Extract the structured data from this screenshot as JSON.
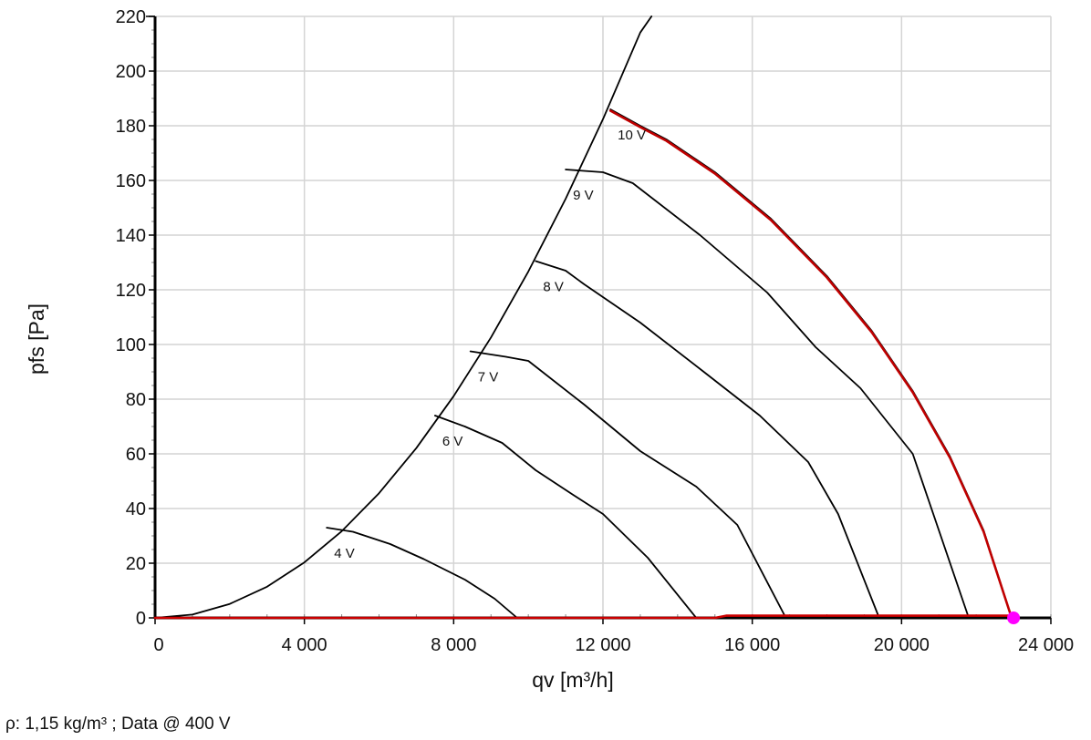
{
  "chart_data": {
    "type": "line",
    "xlabel": "qv [m³/h]",
    "ylabel": "pfs [Pa]",
    "xlim": [
      0,
      24000
    ],
    "ylim": [
      0,
      220
    ],
    "x_ticks": [
      0,
      4000,
      8000,
      12000,
      16000,
      20000,
      24000
    ],
    "x_tick_labels": [
      "0",
      "4 000",
      "8 000",
      "12 000",
      "16 000",
      "20 000",
      "24 000"
    ],
    "y_ticks": [
      0,
      20,
      40,
      60,
      80,
      100,
      120,
      140,
      160,
      180,
      200,
      220
    ],
    "y_tick_labels": [
      "0",
      "20",
      "40",
      "60",
      "80",
      "100",
      "120",
      "140",
      "160",
      "180",
      "200",
      "220"
    ],
    "grid": true,
    "series": [
      {
        "name": "4 V",
        "color": "#000000",
        "x": [
          4600,
          5300,
          6300,
          7200,
          8300,
          9100,
          9700
        ],
        "y": [
          33,
          31.5,
          27,
          21.5,
          14,
          7,
          0
        ]
      },
      {
        "name": "6 V",
        "color": "#000000",
        "x": [
          7500,
          8300,
          9300,
          10200,
          11200,
          12000,
          13200,
          14500
        ],
        "y": [
          74,
          70,
          64,
          54,
          45,
          38,
          22,
          0
        ]
      },
      {
        "name": "7 V",
        "color": "#000000",
        "x": [
          8450,
          9400,
          10000,
          11500,
          13000,
          14500,
          15600,
          16900
        ],
        "y": [
          97.5,
          95.5,
          94,
          78,
          61,
          48,
          34,
          0
        ]
      },
      {
        "name": "8 V",
        "color": "#000000",
        "x": [
          10200,
          11000,
          11500,
          13000,
          14700,
          16200,
          17500,
          18300,
          19400
        ],
        "y": [
          130.5,
          127,
          122,
          108,
          90,
          74,
          57,
          38,
          0
        ]
      },
      {
        "name": "9 V",
        "color": "#000000",
        "x": [
          11000,
          12000,
          12800,
          14600,
          16400,
          17700,
          18900,
          20300,
          21800
        ],
        "y": [
          164,
          163,
          159,
          140,
          119,
          99,
          84,
          60,
          0
        ]
      },
      {
        "name": "10 V",
        "color": "#000000",
        "x": [
          12200,
          13000,
          13700,
          15000,
          16500,
          18000,
          19200,
          20300,
          21300,
          22200,
          22950
        ],
        "y": [
          186,
          180,
          175,
          163,
          146,
          125,
          105,
          83,
          59,
          32,
          0
        ]
      },
      {
        "name": "",
        "color": "#c00000",
        "x": [
          12200,
          13000,
          13700,
          15000,
          16500,
          18000,
          19200,
          20300,
          21300,
          22200,
          22950
        ],
        "y": [
          185.5,
          179.5,
          174.5,
          162.5,
          145.5,
          124.5,
          104.5,
          82.5,
          58.5,
          31.5,
          0
        ]
      },
      {
        "name": "",
        "color": "#000000",
        "x": [
          0,
          1000,
          2000,
          3000,
          4000,
          5000,
          6000,
          7000,
          8000,
          9000,
          10000,
          11000,
          12000,
          13000,
          13300
        ],
        "y": [
          0,
          1.2,
          5.1,
          11.4,
          20.3,
          31.7,
          45.6,
          62.1,
          81.1,
          102.6,
          126.7,
          153.3,
          182.4,
          214.1,
          220
        ]
      },
      {
        "name": "",
        "color": "#cc0000",
        "x": [
          0,
          15000,
          15300,
          22950
        ],
        "y": [
          0,
          0,
          0.8,
          0.8
        ]
      }
    ],
    "operating_point": {
      "x": 23000,
      "y": 0,
      "color": "#ff00ff"
    },
    "footnote": "ρ: 1,15 kg/m³ ; Data @ 400 V"
  }
}
